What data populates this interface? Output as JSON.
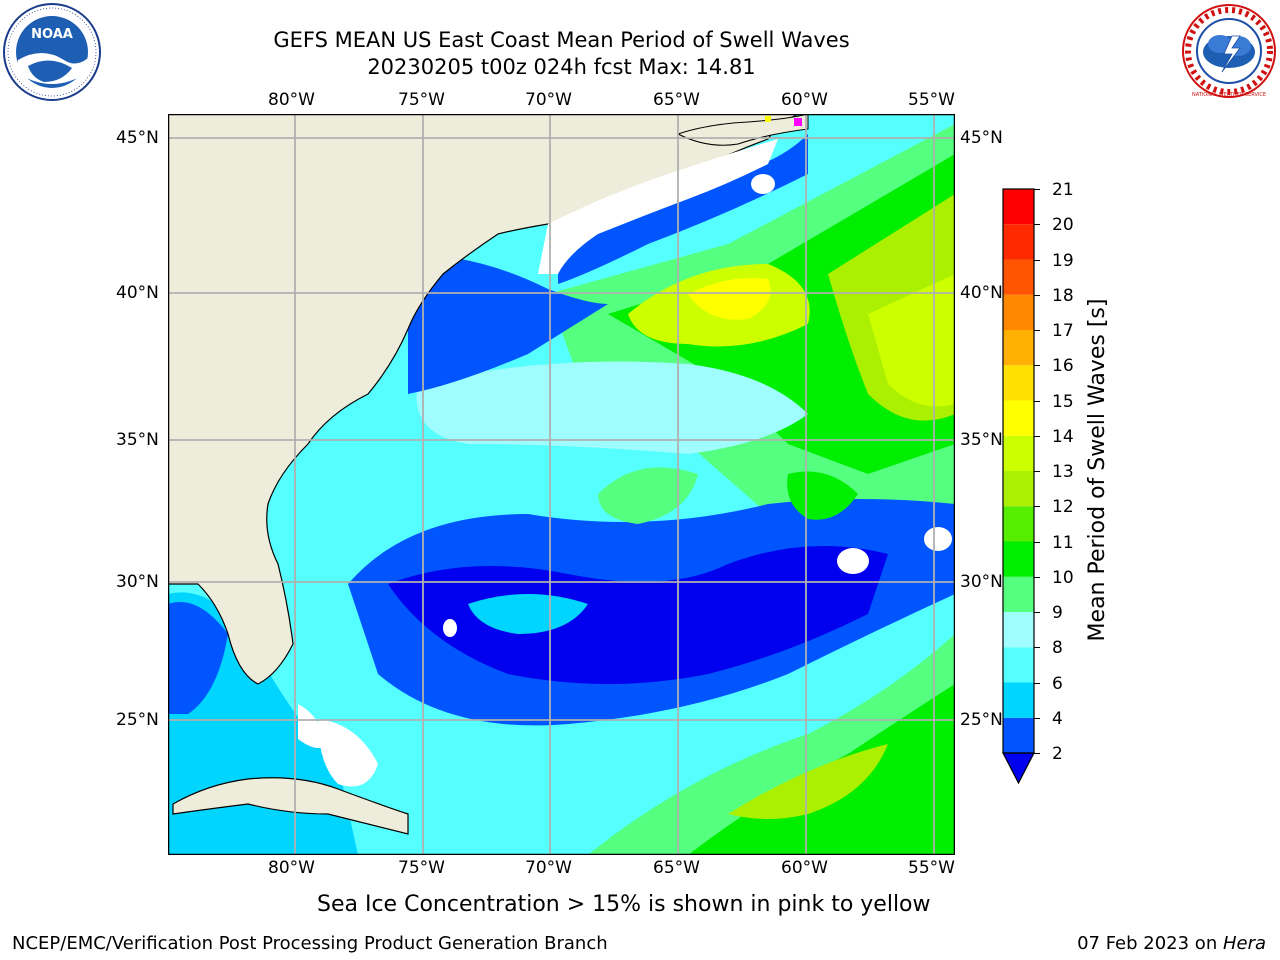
{
  "title": {
    "line1": "GEFS MEAN US East Coast Mean Period of Swell Waves",
    "line2": "20230205 t00z 024h fcst   Max: 14.81"
  },
  "map": {
    "lon_labels": [
      "80°W",
      "75°W",
      "70°W",
      "65°W",
      "60°W",
      "55°W"
    ],
    "lat_labels": [
      "45°N",
      "40°N",
      "35°N",
      "30°N",
      "25°N"
    ]
  },
  "colorbar": {
    "label": "Mean Period of Swell Waves [s]",
    "ticks": [
      "2",
      "4",
      "6",
      "8",
      "9",
      "10",
      "11",
      "12",
      "13",
      "14",
      "15",
      "16",
      "17",
      "18",
      "19",
      "20",
      "21"
    ],
    "colors": [
      "#0055ff",
      "#00d5ff",
      "#55ffff",
      "#9ffcff",
      "#55ff80",
      "#00ee00",
      "#55ee00",
      "#aaf000",
      "#ccff00",
      "#ffff00",
      "#ffe000",
      "#ffb000",
      "#ff8800",
      "#ff5500",
      "#ff2a00",
      "#ff0000"
    ],
    "under_color": "#0000ee"
  },
  "sea_ice_note": "Sea Ice Concentration > 15% is shown in pink to yellow",
  "footer": {
    "left": "NCEP/EMC/Verification Post Processing Product Generation Branch",
    "right_date": "07 Feb 2023 on ",
    "right_host": "Hera"
  },
  "logos": {
    "noaa_text": "NOAA",
    "nws_text": "NATIONAL WEATHER SERVICE"
  },
  "icons": [
    "noaa-logo",
    "nws-logo"
  ],
  "palette": {
    "land": "#eeecda",
    "grid": "#b0b0b0",
    "ocean_deep": "#0000ee",
    "ocean_blue": "#0055ff",
    "ocean_cyan": "#00d5ff",
    "ocean_light": "#55ffff",
    "ocean_pale": "#9ffcff",
    "green": "#55ff80",
    "green_dark": "#00ee00",
    "yellow_green": "#ccff00",
    "no_data": "#ffffff"
  }
}
